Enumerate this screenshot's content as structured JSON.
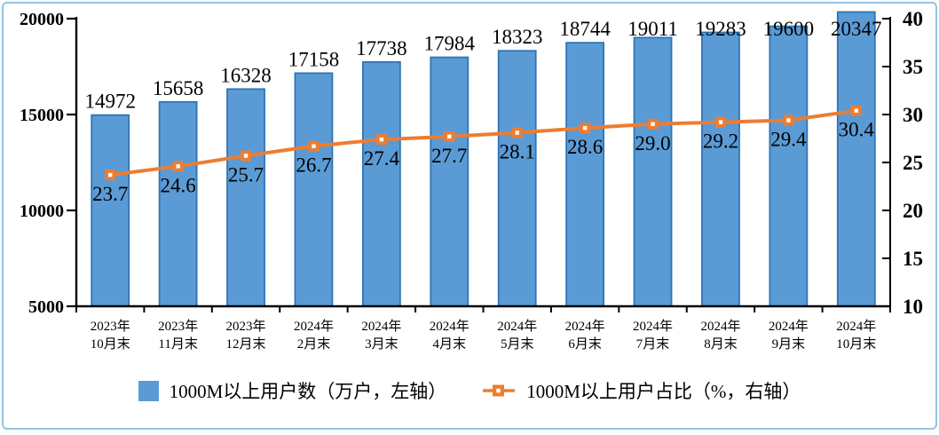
{
  "window": {
    "background": "#ffffff",
    "frame_border_color": "#94c3e4"
  },
  "chart_data": {
    "type": "combo-bar-line",
    "title": "",
    "categories": [
      "2023年\n10月末",
      "2023年\n11月末",
      "2023年\n12月末",
      "2024年\n2月末",
      "2024年\n3月末",
      "2024年\n4月末",
      "2024年\n5月末",
      "2024年\n6月末",
      "2024年\n7月末",
      "2024年\n8月末",
      "2024年\n9月末",
      "2024年\n10月末"
    ],
    "series": [
      {
        "name": "1000M以上用户数（万户，左轴）",
        "type": "bar",
        "axis": "left",
        "values": [
          14972,
          15658,
          16328,
          17158,
          17738,
          17984,
          18323,
          18744,
          19011,
          19283,
          19600,
          20347
        ],
        "labels": [
          "14972",
          "15658",
          "16328",
          "17158",
          "17738",
          "17984",
          "18323",
          "18744",
          "19011",
          "19283",
          "19600",
          "20347"
        ],
        "fill": "#5B9BD5",
        "stroke": "#2E75B6"
      },
      {
        "name": "1000M以上用户占比（%，右轴）",
        "type": "line",
        "axis": "right",
        "values": [
          23.7,
          24.6,
          25.7,
          26.7,
          27.4,
          27.7,
          28.1,
          28.6,
          29.0,
          29.2,
          29.4,
          30.4
        ],
        "labels": [
          "23.7",
          "24.6",
          "25.7",
          "26.7",
          "27.4",
          "27.7",
          "28.1",
          "28.6",
          "29.0",
          "29.2",
          "29.4",
          "30.4"
        ],
        "color": "#ED7D31",
        "marker": "square-with-white-center"
      }
    ],
    "left_axis": {
      "min": 5000,
      "max": 20000,
      "tick_values": [
        20000,
        15000,
        10000,
        5000
      ],
      "tick_labels": [
        "20000",
        "15000",
        "10000",
        "5000"
      ]
    },
    "right_axis": {
      "min": 10,
      "max": 40,
      "tick_values": [
        40,
        35,
        30,
        25,
        20,
        15,
        10
      ],
      "tick_labels": [
        "40",
        "35",
        "30",
        "25",
        "20",
        "15",
        "10"
      ]
    },
    "grid": false,
    "legend_position": "bottom-center",
    "axis_color": "#000000",
    "text_color": "#000000"
  }
}
